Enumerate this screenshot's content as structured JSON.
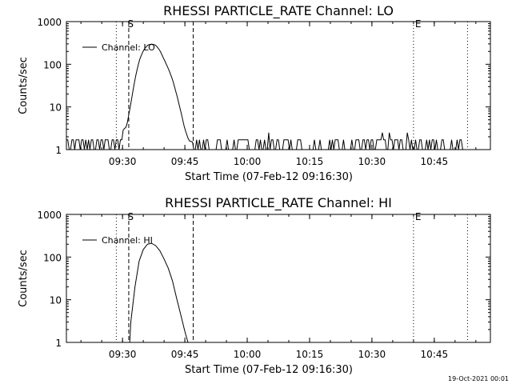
{
  "footer": {
    "timestamp": "19-Oct-2021 00:01"
  },
  "chart_data": [
    {
      "type": "line",
      "title": "RHESSI PARTICLE_RATE Channel: LO",
      "xlabel": "Start Time (07-Feb-12 09:16:30)",
      "ylabel": "Counts/sec",
      "y_scale": "log",
      "ylim": [
        1,
        1000
      ],
      "xlim": [
        "09:16:30",
        "10:58:30"
      ],
      "x_ticks": [
        "09:30",
        "09:45",
        "10:00",
        "10:15",
        "10:30",
        "10:45"
      ],
      "y_ticks": [
        "1",
        "10",
        "100",
        "1000"
      ],
      "legend": {
        "label": "Channel: LO",
        "position": "top-left"
      },
      "markers": [
        {
          "label": "S",
          "time": "09:31:00",
          "style": "dashed"
        },
        {
          "label": "E",
          "time": "10:40:00",
          "style": "dotted"
        }
      ],
      "vlines": [
        {
          "time": "09:28:30",
          "style": "dotted"
        },
        {
          "time": "09:31:30",
          "style": "dashed"
        },
        {
          "time": "09:47:00",
          "style": "dashed"
        },
        {
          "time": "10:40:00",
          "style": "dotted"
        },
        {
          "time": "10:53:00",
          "style": "dotted"
        }
      ],
      "series": [
        {
          "name": "Channel: LO",
          "x": [
            "09:16:30",
            "09:26:00",
            "09:28:00",
            "09:30:00",
            "09:31:00",
            "09:32:00",
            "09:33:00",
            "09:34:00",
            "09:35:00",
            "09:36:00",
            "09:37:00",
            "09:38:00",
            "09:39:00",
            "09:40:00",
            "09:41:00",
            "09:42:00",
            "09:43:00",
            "09:44:00",
            "09:45:00",
            "09:46:00",
            "09:47:00",
            "09:48:00",
            "10:30:00",
            "10:53:00"
          ],
          "y": [
            1.7,
            1.7,
            2.3,
            2.8,
            3.5,
            12,
            45,
            120,
            210,
            280,
            300,
            280,
            210,
            130,
            80,
            45,
            20,
            8,
            3,
            1.6,
            1.5,
            1.2,
            1.3,
            1.7
          ],
          "noise_floor": [
            1,
            1.7
          ]
        }
      ]
    },
    {
      "type": "line",
      "title": "RHESSI PARTICLE_RATE Channel: HI",
      "xlabel": "Start Time (07-Feb-12 09:16:30)",
      "ylabel": "Counts/sec",
      "y_scale": "log",
      "ylim": [
        1,
        1000
      ],
      "xlim": [
        "09:16:30",
        "10:58:30"
      ],
      "x_ticks": [
        "09:30",
        "09:45",
        "10:00",
        "10:15",
        "10:30",
        "10:45"
      ],
      "y_ticks": [
        "1",
        "10",
        "100",
        "1000"
      ],
      "legend": {
        "label": "Channel: HI",
        "position": "top-left"
      },
      "markers": [
        {
          "label": "S",
          "time": "09:31:00",
          "style": "dashed"
        },
        {
          "label": "E",
          "time": "10:40:00",
          "style": "dotted"
        }
      ],
      "vlines": [
        {
          "time": "09:28:30",
          "style": "dotted"
        },
        {
          "time": "09:31:30",
          "style": "dashed"
        },
        {
          "time": "09:47:00",
          "style": "dashed"
        },
        {
          "time": "10:40:00",
          "style": "dotted"
        },
        {
          "time": "10:53:00",
          "style": "dotted"
        }
      ],
      "series": [
        {
          "name": "Channel: HI",
          "x": [
            "09:31:45",
            "09:32:00",
            "09:33:00",
            "09:34:00",
            "09:35:00",
            "09:36:00",
            "09:37:00",
            "09:38:00",
            "09:39:00",
            "09:40:00",
            "09:41:00",
            "09:42:00",
            "09:43:00",
            "09:44:00",
            "09:45:00",
            "09:45:45"
          ],
          "y": [
            1,
            3,
            20,
            80,
            150,
            200,
            210,
            185,
            140,
            90,
            55,
            28,
            11,
            4.5,
            1.8,
            1
          ]
        }
      ]
    }
  ]
}
